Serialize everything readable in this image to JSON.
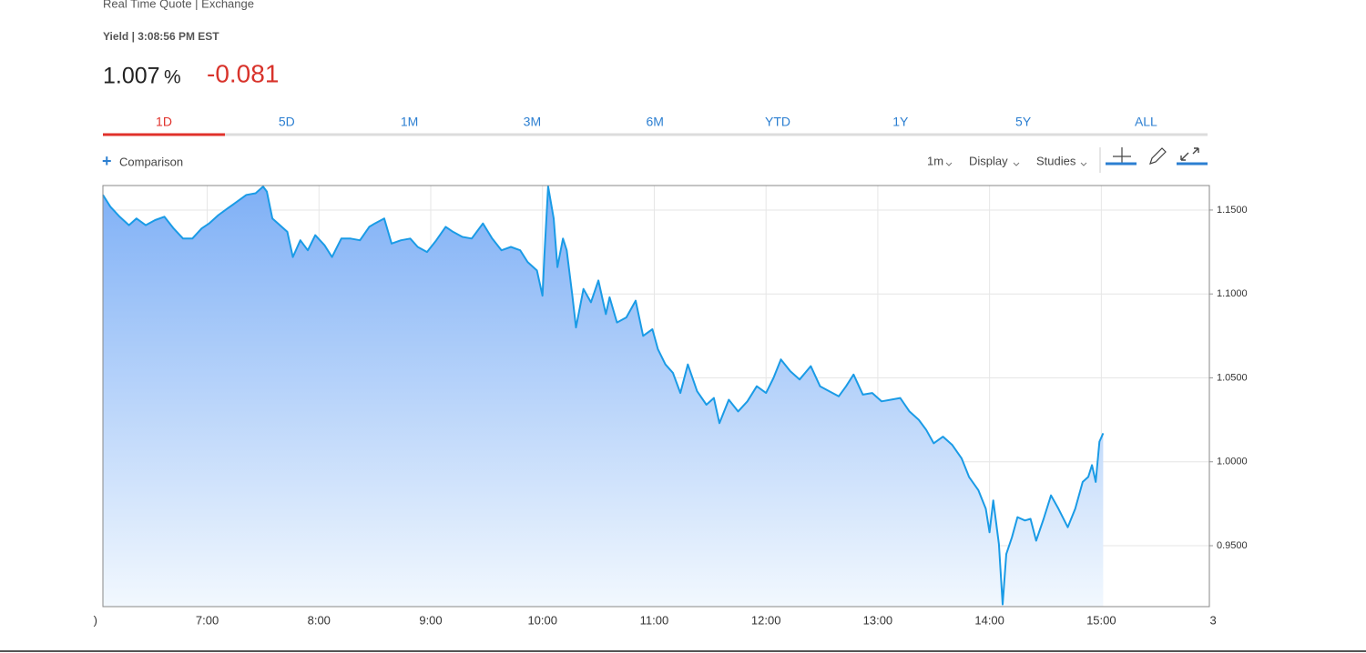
{
  "header": {
    "source": "Real Time Quote | Exchange",
    "quote_label": "Yield | 3:08:56 PM EST",
    "price": "1.007",
    "price_unit": "%",
    "change": "-0.081"
  },
  "tabs": [
    "1D",
    "5D",
    "1M",
    "3M",
    "6M",
    "YTD",
    "1Y",
    "5Y",
    "ALL"
  ],
  "toolbar": {
    "comparison": "Comparison",
    "interval": "1m",
    "display": "Display",
    "studies": "Studies"
  },
  "chart_data": {
    "type": "line",
    "grid": true,
    "fill": "area",
    "x": [
      364,
      368,
      373,
      378,
      382,
      387,
      392,
      397,
      402,
      407,
      412,
      417,
      421,
      426,
      431,
      436,
      441,
      446,
      450,
      452,
      455,
      458,
      463,
      466,
      470,
      474,
      478,
      483,
      487,
      492,
      497,
      502,
      507,
      510,
      515,
      519,
      524,
      529,
      533,
      538,
      543,
      548,
      552,
      557,
      562,
      568,
      573,
      578,
      583,
      588,
      592,
      597,
      600,
      601,
      603,
      606,
      608,
      611,
      613,
      616,
      618,
      622,
      626,
      630,
      634,
      636,
      640,
      645,
      650,
      654,
      659,
      662,
      666,
      670,
      674,
      678,
      683,
      688,
      692,
      695,
      700,
      705,
      710,
      715,
      720,
      724,
      728,
      733,
      738,
      744,
      749,
      754,
      759,
      763,
      767,
      772,
      777,
      782,
      787,
      792,
      797,
      802,
      806,
      810,
      815,
      820,
      825,
      829,
      834,
      838,
      840,
      842,
      845,
      847,
      849,
      852,
      855,
      859,
      862,
      865,
      869,
      873,
      877,
      882,
      886,
      890,
      893,
      895,
      897,
      899,
      901
    ],
    "series": [
      {
        "name": "Yield",
        "color": "#1a9be6",
        "values": [
          1.159,
          1.152,
          1.146,
          1.141,
          1.145,
          1.141,
          1.144,
          1.146,
          1.139,
          1.133,
          1.133,
          1.139,
          1.142,
          1.147,
          1.151,
          1.155,
          1.159,
          1.16,
          1.164,
          1.161,
          1.145,
          1.142,
          1.137,
          1.122,
          1.132,
          1.126,
          1.135,
          1.129,
          1.122,
          1.133,
          1.133,
          1.132,
          1.14,
          1.142,
          1.145,
          1.13,
          1.132,
          1.133,
          1.128,
          1.125,
          1.132,
          1.14,
          1.137,
          1.134,
          1.133,
          1.142,
          1.133,
          1.126,
          1.128,
          1.126,
          1.119,
          1.114,
          1.099,
          1.123,
          1.164,
          1.145,
          1.116,
          1.133,
          1.126,
          1.099,
          1.08,
          1.103,
          1.095,
          1.108,
          1.088,
          1.098,
          1.083,
          1.086,
          1.096,
          1.075,
          1.079,
          1.067,
          1.058,
          1.053,
          1.041,
          1.058,
          1.042,
          1.034,
          1.038,
          1.023,
          1.037,
          1.03,
          1.036,
          1.045,
          1.041,
          1.05,
          1.061,
          1.054,
          1.049,
          1.057,
          1.045,
          1.042,
          1.039,
          1.045,
          1.052,
          1.04,
          1.041,
          1.036,
          1.037,
          1.038,
          1.03,
          1.025,
          1.019,
          1.011,
          1.015,
          1.01,
          1.002,
          0.991,
          0.983,
          0.972,
          0.958,
          0.977,
          0.951,
          0.915,
          0.945,
          0.955,
          0.967,
          0.965,
          0.966,
          0.953,
          0.966,
          0.98,
          0.972,
          0.961,
          0.972,
          0.988,
          0.991,
          0.998,
          0.988,
          1.012,
          1.017
        ]
      }
    ],
    "xlim": [
      364,
      958
    ],
    "xticks": [
      {
        "value": 360,
        "label": ")"
      },
      {
        "value": 420,
        "label": "7:00"
      },
      {
        "value": 480,
        "label": "8:00"
      },
      {
        "value": 540,
        "label": "9:00"
      },
      {
        "value": 600,
        "label": "10:00"
      },
      {
        "value": 660,
        "label": "11:00"
      },
      {
        "value": 720,
        "label": "12:00"
      },
      {
        "value": 780,
        "label": "13:00"
      },
      {
        "value": 840,
        "label": "14:00"
      },
      {
        "value": 900,
        "label": "15:00"
      },
      {
        "value": 960,
        "label": "3"
      }
    ],
    "ylim": [
      0.9137,
      1.1646
    ],
    "yticks": [
      {
        "value": 0.95,
        "label": "0.9500"
      },
      {
        "value": 1.0,
        "label": "1.0000"
      },
      {
        "value": 1.05,
        "label": "1.0500"
      },
      {
        "value": 1.1,
        "label": "1.1000"
      },
      {
        "value": 1.15,
        "label": "1.1500"
      }
    ]
  }
}
